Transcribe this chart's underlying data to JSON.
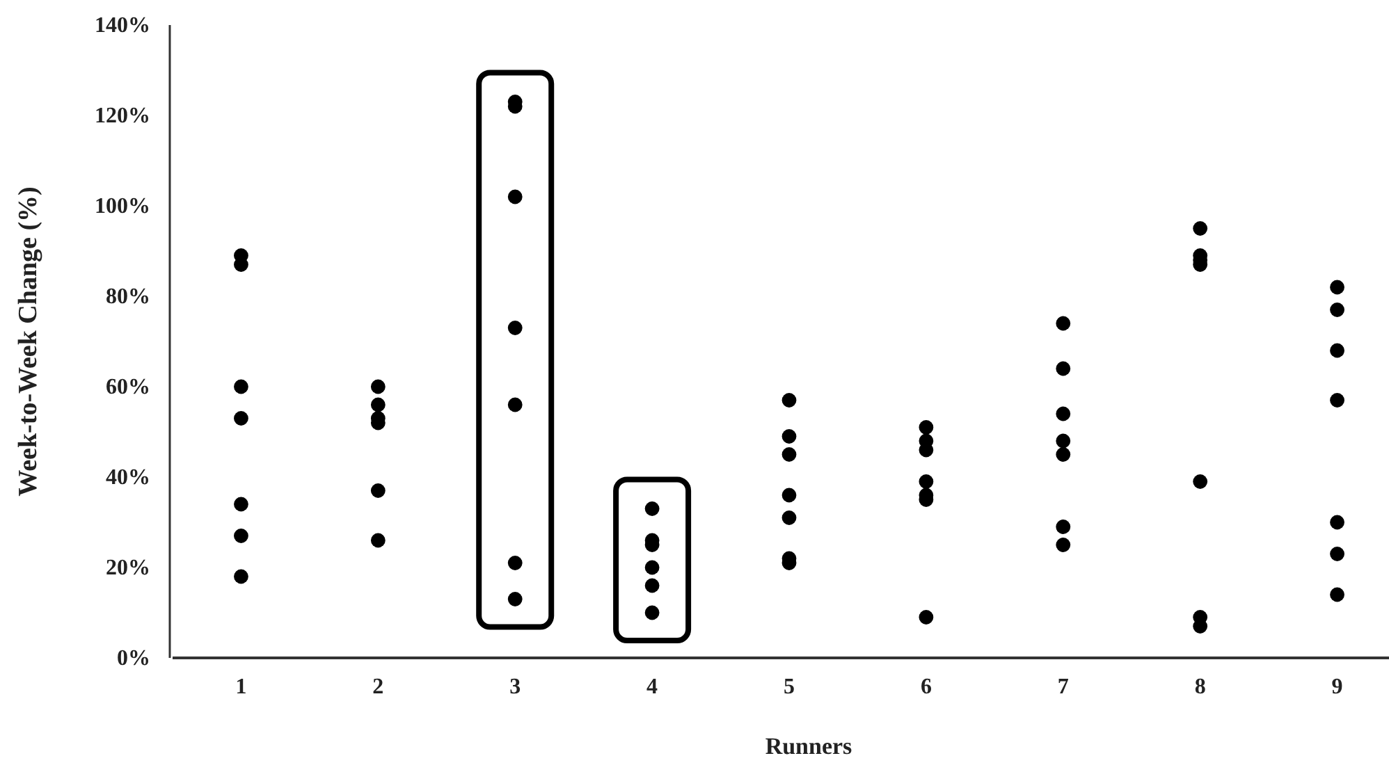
{
  "chart_data": {
    "type": "scatter",
    "xlabel": "Runners",
    "ylabel": "Week-to-Week  Change (%)",
    "categories": [
      "1",
      "2",
      "3",
      "4",
      "5",
      "6",
      "7",
      "8",
      "9"
    ],
    "series": [
      {
        "color": "#000000",
        "x": [
          "1",
          "1",
          "1",
          "1",
          "1",
          "1",
          "1",
          "2",
          "2",
          "2",
          "2",
          "2",
          "2",
          "3",
          "3",
          "3",
          "3",
          "3",
          "3",
          "3",
          "4",
          "4",
          "4",
          "4",
          "4",
          "4",
          "5",
          "5",
          "5",
          "5",
          "5",
          "5",
          "5",
          "6",
          "6",
          "6",
          "6",
          "6",
          "6",
          "6",
          "7",
          "7",
          "7",
          "7",
          "7",
          "7",
          "7",
          "8",
          "8",
          "8",
          "8",
          "8",
          "8",
          "8",
          "9",
          "9",
          "9",
          "9",
          "9",
          "9",
          "9"
        ],
        "values": [
          89,
          87,
          60,
          53,
          34,
          27,
          18,
          60,
          56,
          53,
          52,
          37,
          26,
          123,
          122,
          102,
          73,
          56,
          21,
          13,
          33,
          26,
          25,
          20,
          16,
          10,
          57,
          49,
          45,
          36,
          31,
          22,
          21,
          51,
          48,
          46,
          39,
          36,
          35,
          9,
          74,
          64,
          54,
          48,
          45,
          29,
          25,
          95,
          89,
          88,
          87,
          39,
          9,
          7,
          82,
          77,
          68,
          57,
          30,
          23,
          14
        ]
      }
    ],
    "ylim": [
      0,
      140
    ],
    "yticks": [
      {
        "value": 0,
        "label": "0%"
      },
      {
        "value": 20,
        "label": "20%"
      },
      {
        "value": 40,
        "label": "40%"
      },
      {
        "value": 60,
        "label": "60%"
      },
      {
        "value": 80,
        "label": "80%"
      },
      {
        "value": 100,
        "label": "100%"
      },
      {
        "value": 120,
        "label": "120%"
      },
      {
        "value": 140,
        "label": "140%"
      }
    ],
    "marker": "circle",
    "grid": false
  }
}
